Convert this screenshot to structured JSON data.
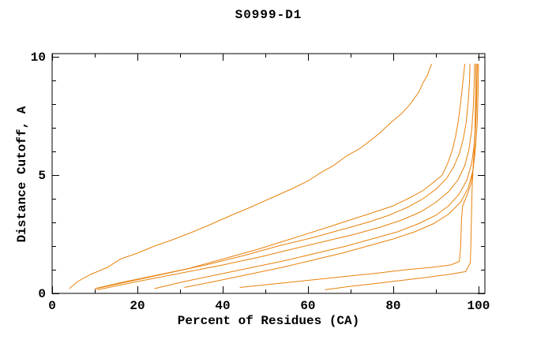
{
  "window": {
    "title": "S0999-D1"
  },
  "chart_data": {
    "type": "line",
    "title": "S0999-D1",
    "xlabel": "Percent of Residues (CA)",
    "ylabel": "Distance Cutoff, A",
    "xlim": [
      0,
      101.5
    ],
    "ylim": [
      0,
      10.13
    ],
    "x_major_ticks": [
      0,
      20,
      40,
      60,
      80,
      100
    ],
    "x_minor_ticks": [
      10,
      30,
      50,
      70,
      90
    ],
    "y_major_ticks": [
      0,
      5,
      10
    ],
    "y_minor_ticks": [
      1,
      2,
      3,
      4,
      6,
      7,
      8,
      9
    ],
    "grid": false,
    "legend_position": "none",
    "line_color": "#e8820c",
    "axis_color": "#000000",
    "background_color": "#ffffff",
    "series": [
      {
        "name": "curve-1",
        "points": [
          [
            4,
            0.2
          ],
          [
            6,
            0.5
          ],
          [
            9,
            0.8
          ],
          [
            13,
            1.1
          ],
          [
            16,
            1.45
          ],
          [
            20,
            1.7
          ],
          [
            24,
            2.0
          ],
          [
            28,
            2.25
          ],
          [
            33,
            2.6
          ],
          [
            37,
            2.9
          ],
          [
            42,
            3.3
          ],
          [
            46,
            3.6
          ],
          [
            51,
            4.0
          ],
          [
            56,
            4.4
          ],
          [
            60,
            4.75
          ],
          [
            63,
            5.1
          ],
          [
            66,
            5.4
          ],
          [
            69,
            5.8
          ],
          [
            72,
            6.1
          ],
          [
            75,
            6.5
          ],
          [
            77,
            6.8
          ],
          [
            80,
            7.3
          ],
          [
            82,
            7.6
          ],
          [
            84,
            8.0
          ],
          [
            86,
            8.5
          ],
          [
            87,
            8.9
          ],
          [
            88,
            9.2
          ],
          [
            89,
            9.7
          ]
        ]
      },
      {
        "name": "curve-2",
        "points": [
          [
            10,
            0.2
          ],
          [
            16,
            0.45
          ],
          [
            24,
            0.75
          ],
          [
            32,
            1.05
          ],
          [
            40,
            1.45
          ],
          [
            48,
            1.85
          ],
          [
            56,
            2.3
          ],
          [
            63,
            2.7
          ],
          [
            69,
            3.05
          ],
          [
            75,
            3.4
          ],
          [
            80,
            3.7
          ],
          [
            84,
            4.05
          ],
          [
            87,
            4.35
          ],
          [
            89.5,
            4.7
          ],
          [
            91.5,
            5.0
          ],
          [
            92.8,
            5.5
          ],
          [
            93.8,
            6.0
          ],
          [
            94.6,
            6.6
          ],
          [
            95.2,
            7.2
          ],
          [
            95.7,
            7.9
          ],
          [
            96.2,
            8.7
          ],
          [
            96.8,
            9.7
          ]
        ]
      },
      {
        "name": "curve-3",
        "points": [
          [
            10.3,
            0.2
          ],
          [
            18,
            0.5
          ],
          [
            27,
            0.85
          ],
          [
            36,
            1.2
          ],
          [
            45,
            1.6
          ],
          [
            53,
            2.0
          ],
          [
            61,
            2.35
          ],
          [
            68,
            2.7
          ],
          [
            74,
            3.0
          ],
          [
            79,
            3.3
          ],
          [
            83.5,
            3.65
          ],
          [
            87,
            4.0
          ],
          [
            90,
            4.4
          ],
          [
            92.5,
            4.85
          ],
          [
            94.2,
            5.35
          ],
          [
            95.5,
            5.9
          ],
          [
            96.4,
            6.5
          ],
          [
            97.1,
            7.2
          ],
          [
            97.6,
            8.1
          ],
          [
            97.9,
            9.0
          ],
          [
            98,
            9.7
          ]
        ]
      },
      {
        "name": "curve-4",
        "points": [
          [
            10.6,
            0.15
          ],
          [
            20,
            0.5
          ],
          [
            30,
            0.85
          ],
          [
            40,
            1.2
          ],
          [
            49,
            1.55
          ],
          [
            57,
            1.9
          ],
          [
            64,
            2.2
          ],
          [
            71,
            2.5
          ],
          [
            77,
            2.8
          ],
          [
            82,
            3.1
          ],
          [
            86.5,
            3.45
          ],
          [
            90,
            3.85
          ],
          [
            93,
            4.3
          ],
          [
            95.2,
            4.8
          ],
          [
            96.8,
            5.4
          ],
          [
            97.8,
            6.1
          ],
          [
            98.4,
            6.9
          ],
          [
            98.8,
            7.9
          ],
          [
            99,
            9.0
          ],
          [
            99.1,
            9.7
          ]
        ]
      },
      {
        "name": "curve-5",
        "points": [
          [
            24,
            0.2
          ],
          [
            31,
            0.5
          ],
          [
            39,
            0.8
          ],
          [
            47,
            1.1
          ],
          [
            55,
            1.4
          ],
          [
            62,
            1.7
          ],
          [
            69,
            2.0
          ],
          [
            75,
            2.3
          ],
          [
            81,
            2.6
          ],
          [
            86,
            2.95
          ],
          [
            90,
            3.3
          ],
          [
            93,
            3.7
          ],
          [
            95.5,
            4.2
          ],
          [
            97.3,
            4.8
          ],
          [
            98.4,
            5.5
          ],
          [
            99,
            6.3
          ],
          [
            99.4,
            7.3
          ],
          [
            99.6,
            8.4
          ],
          [
            99.7,
            9.7
          ]
        ]
      },
      {
        "name": "curve-6",
        "points": [
          [
            31,
            0.25
          ],
          [
            38,
            0.5
          ],
          [
            46,
            0.8
          ],
          [
            54,
            1.1
          ],
          [
            61,
            1.4
          ],
          [
            68,
            1.7
          ],
          [
            74,
            2.0
          ],
          [
            80,
            2.3
          ],
          [
            85,
            2.6
          ],
          [
            89.5,
            2.95
          ],
          [
            93,
            3.35
          ],
          [
            95.8,
            3.85
          ],
          [
            97.6,
            4.45
          ],
          [
            98.7,
            5.2
          ],
          [
            99.3,
            6.1
          ],
          [
            99.7,
            7.2
          ],
          [
            99.9,
            8.5
          ],
          [
            100,
            9.7
          ]
        ]
      },
      {
        "name": "curve-7",
        "points": [
          [
            44,
            0.25
          ],
          [
            52,
            0.4
          ],
          [
            60,
            0.55
          ],
          [
            68,
            0.7
          ],
          [
            76,
            0.85
          ],
          [
            83,
            1.0
          ],
          [
            89,
            1.1
          ],
          [
            93.5,
            1.2
          ],
          [
            95.5,
            1.35
          ],
          [
            95.8,
            1.9
          ],
          [
            95.9,
            2.5
          ],
          [
            96,
            3.1
          ],
          [
            96.3,
            3.7
          ],
          [
            97.2,
            4.1
          ],
          [
            98.2,
            4.6
          ],
          [
            98.7,
            5.2
          ],
          [
            99,
            6.0
          ],
          [
            99.2,
            7.0
          ],
          [
            99.3,
            8.2
          ],
          [
            99.4,
            9.7
          ]
        ]
      },
      {
        "name": "curve-8",
        "points": [
          [
            64,
            0.15
          ],
          [
            70,
            0.3
          ],
          [
            76,
            0.42
          ],
          [
            82,
            0.55
          ],
          [
            88,
            0.68
          ],
          [
            93,
            0.8
          ],
          [
            97,
            0.92
          ],
          [
            98.1,
            1.3
          ],
          [
            98.2,
            2.0
          ],
          [
            98.3,
            2.8
          ],
          [
            98.4,
            3.6
          ],
          [
            98.5,
            4.4
          ],
          [
            98.7,
            5.2
          ],
          [
            99,
            6.0
          ],
          [
            99.3,
            7.0
          ],
          [
            99.5,
            8.0
          ],
          [
            99.6,
            9.0
          ],
          [
            99.7,
            9.7
          ]
        ]
      }
    ]
  }
}
